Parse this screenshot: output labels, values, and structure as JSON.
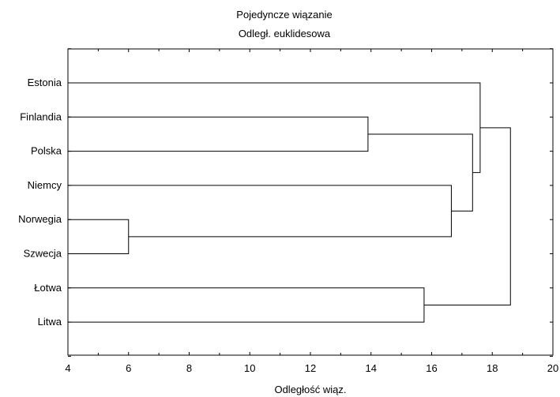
{
  "chart_data": {
    "type": "dendrogram",
    "title": "Pojedyncze wiązanie",
    "subtitle": "Odległ. euklidesowa",
    "xlabel": "Odległość wiąz.",
    "xlim": [
      4,
      20
    ],
    "x_ticks": [
      "4",
      "6",
      "8",
      "10",
      "12",
      "14",
      "16",
      "18",
      "20"
    ],
    "leaves": [
      "Estonia",
      "Finlandia",
      "Polska",
      "Niemcy",
      "Norwegia",
      "Szwecja",
      "Łotwa",
      "Litwa"
    ],
    "merges": [
      {
        "a": "Norwegia",
        "b": "Szwecja",
        "distance": 6.0
      },
      {
        "a": "Finlandia",
        "b": "Polska",
        "distance": 13.9
      },
      {
        "a": "Łotwa",
        "b": "Litwa",
        "distance": 15.75
      },
      {
        "a": "Niemcy",
        "b": "Norwegia+Szwecja",
        "distance": 16.65
      },
      {
        "a": "Finlandia+Polska",
        "b": "Niemcy+Norwegia+Szwecja",
        "distance": 17.35
      },
      {
        "a": "Estonia",
        "b": "Finlandia+Polska+Niemcy+Norwegia+Szwecja",
        "distance": 17.6
      },
      {
        "a": "Estonia+Finlandia+Polska+Niemcy+Norwegia+Szwecja",
        "b": "Łotwa+Litwa",
        "distance": 18.6
      }
    ],
    "grid": false
  }
}
